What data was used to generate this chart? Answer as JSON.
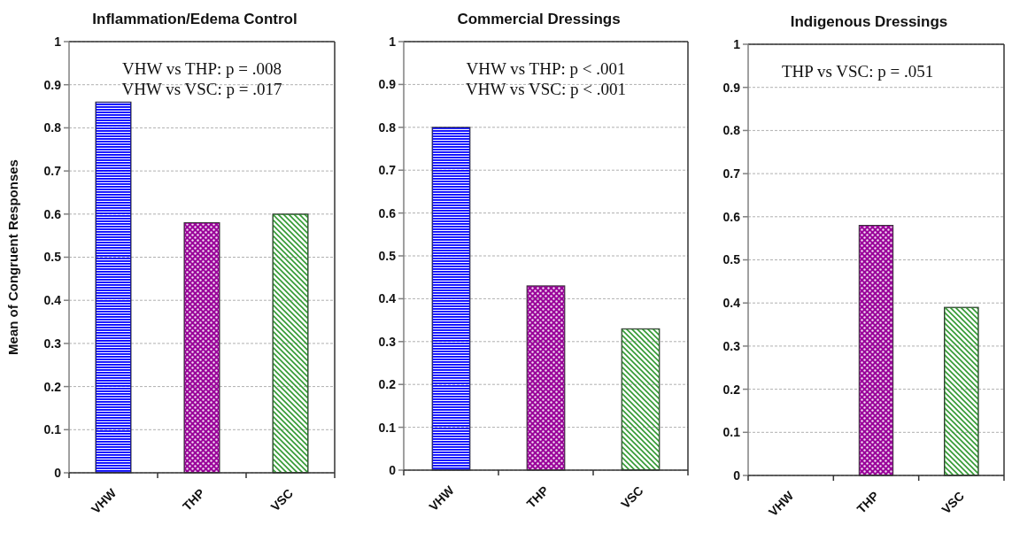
{
  "chart_data": [
    {
      "type": "bar",
      "title": "Inflammation/Edema Control",
      "ylabel": "Mean of Congruent Responses",
      "categories": [
        "VHW",
        "THP",
        "VSC"
      ],
      "values": [
        0.86,
        0.58,
        0.6
      ],
      "colors": [
        "#0000ff",
        "#990099",
        "#339933"
      ],
      "ylim": [
        0,
        1
      ],
      "yticks": [
        0,
        0.1,
        0.2,
        0.3,
        0.4,
        0.5,
        0.6,
        0.7,
        0.8,
        0.9,
        1
      ],
      "grid": "y",
      "annotations": [
        "VHW vs THP: p = .008",
        "VHW vs VSC: p = .017"
      ]
    },
    {
      "type": "bar",
      "title": "Commercial Dressings",
      "categories": [
        "VHW",
        "THP",
        "VSC"
      ],
      "values": [
        0.8,
        0.43,
        0.33
      ],
      "colors": [
        "#0000ff",
        "#990099",
        "#339933"
      ],
      "ylim": [
        0,
        1
      ],
      "yticks": [
        0,
        0.1,
        0.2,
        0.3,
        0.4,
        0.5,
        0.6,
        0.7,
        0.8,
        0.9,
        1
      ],
      "grid": "y",
      "annotations": [
        "VHW vs THP: p < .001",
        "VHW vs VSC: p < .001"
      ]
    },
    {
      "type": "bar",
      "title": "Indigenous Dressings",
      "categories": [
        "VHW",
        "THP",
        "VSC"
      ],
      "values": [
        0,
        0.58,
        0.39
      ],
      "colors": [
        "#0000ff",
        "#990099",
        "#339933"
      ],
      "ylim": [
        0,
        1
      ],
      "yticks": [
        0,
        0.1,
        0.2,
        0.3,
        0.4,
        0.5,
        0.6,
        0.7,
        0.8,
        0.9,
        1
      ],
      "grid": "y",
      "annotations": [
        "THP vs VSC: p = .051"
      ]
    }
  ]
}
